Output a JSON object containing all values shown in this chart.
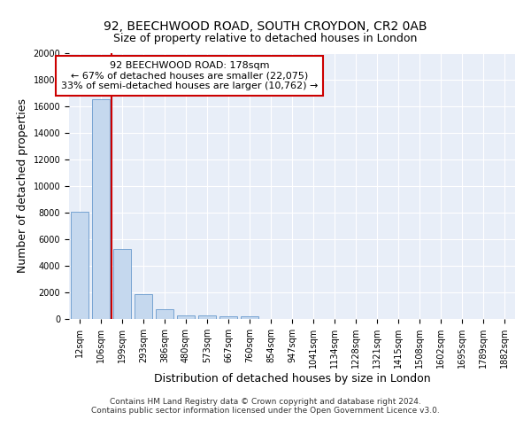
{
  "title1": "92, BEECHWOOD ROAD, SOUTH CROYDON, CR2 0AB",
  "title2": "Size of property relative to detached houses in London",
  "xlabel": "Distribution of detached houses by size in London",
  "ylabel": "Number of detached properties",
  "bar_color": "#c5d8ee",
  "bar_edge_color": "#6699cc",
  "property_line_color": "#cc0000",
  "annotation_text": "92 BEECHWOOD ROAD: 178sqm\n← 67% of detached houses are smaller (22,075)\n33% of semi-detached houses are larger (10,762) →",
  "annotation_box_color": "#ffffff",
  "annotation_box_edge": "#cc0000",
  "categories": [
    "12sqm",
    "106sqm",
    "199sqm",
    "293sqm",
    "386sqm",
    "480sqm",
    "573sqm",
    "667sqm",
    "760sqm",
    "854sqm",
    "947sqm",
    "1041sqm",
    "1134sqm",
    "1228sqm",
    "1321sqm",
    "1415sqm",
    "1508sqm",
    "1602sqm",
    "1695sqm",
    "1789sqm",
    "1882sqm"
  ],
  "values": [
    8100,
    16500,
    5300,
    1850,
    750,
    300,
    270,
    220,
    200,
    0,
    0,
    0,
    0,
    0,
    0,
    0,
    0,
    0,
    0,
    0,
    0
  ],
  "ylim": [
    0,
    20000
  ],
  "yticks": [
    0,
    2000,
    4000,
    6000,
    8000,
    10000,
    12000,
    14000,
    16000,
    18000,
    20000
  ],
  "background_color": "#e8eef8",
  "grid_color": "#ffffff",
  "footer1": "Contains HM Land Registry data © Crown copyright and database right 2024.",
  "footer2": "Contains public sector information licensed under the Open Government Licence v3.0.",
  "title1_fontsize": 10,
  "title2_fontsize": 9,
  "axis_label_fontsize": 9,
  "tick_fontsize": 7,
  "annotation_fontsize": 8,
  "footer_fontsize": 6.5
}
